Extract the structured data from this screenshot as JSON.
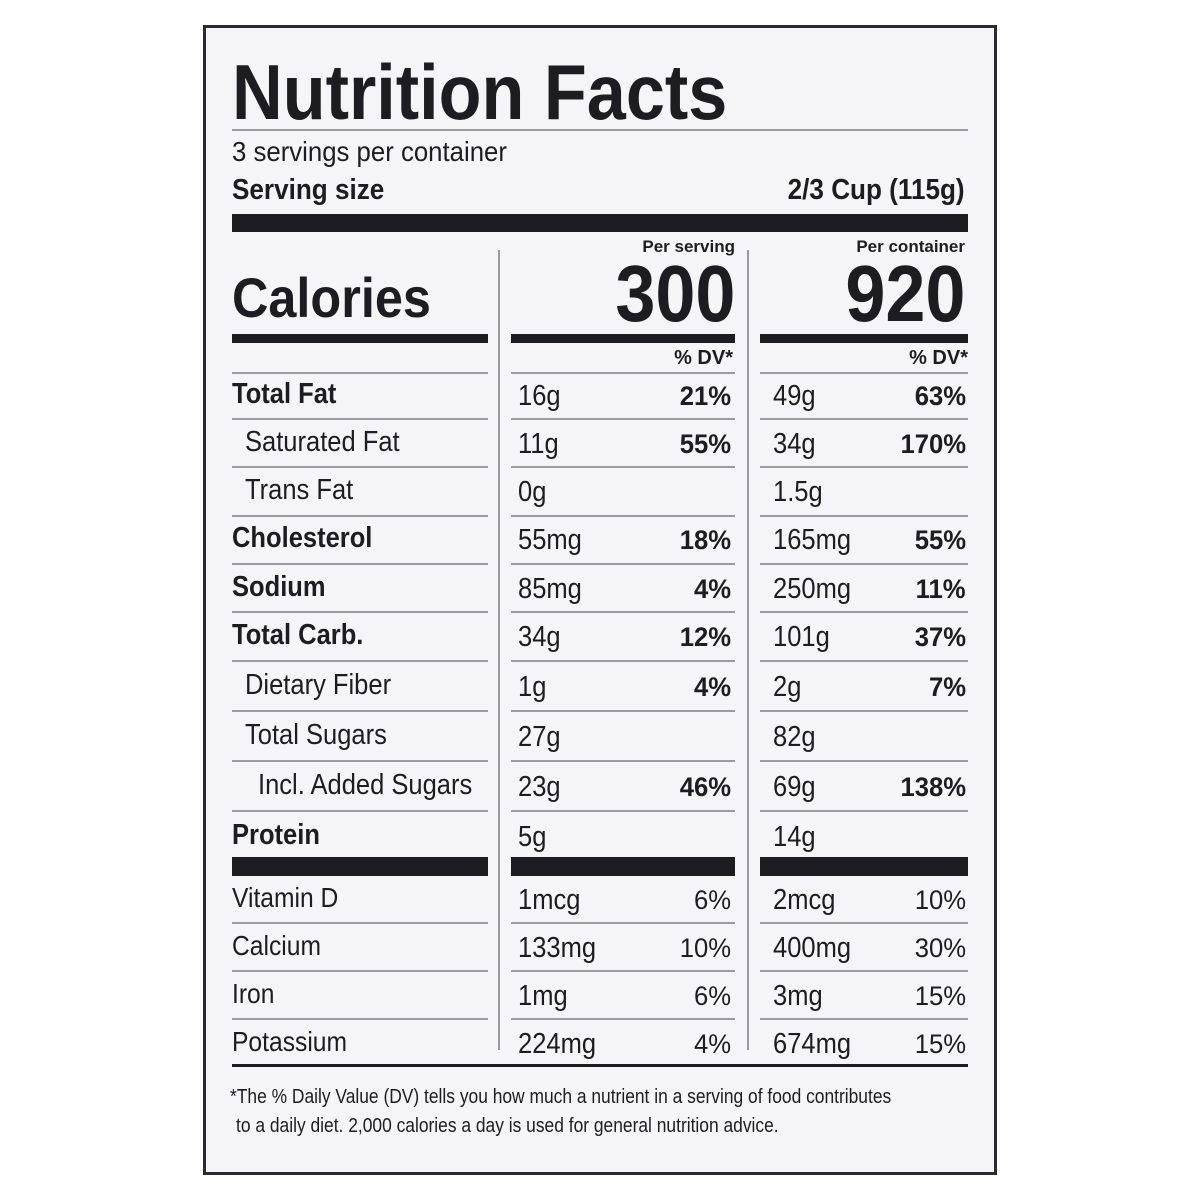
{
  "header": {
    "title": "Nutrition Facts",
    "servings": "3 servings per container",
    "serving_size_label": "Serving size",
    "serving_size_value": "2/3 Cup (115g)"
  },
  "columns": {
    "per_serving": "Per serving",
    "per_container": "Per container",
    "dv_serving": "% DV*",
    "dv_container": "% DV*"
  },
  "calories": {
    "label": "Calories",
    "per_serving": "300",
    "per_container": "920"
  },
  "rows": [
    {
      "name": "Total Fat",
      "bold": true,
      "indent": 0,
      "serving": "16g",
      "serving_dv": "21%",
      "container": "49g",
      "container_dv": "63%"
    },
    {
      "name": "Saturated Fat",
      "bold": false,
      "indent": 1,
      "serving": "11g",
      "serving_dv": "55%",
      "container": "34g",
      "container_dv": "170%"
    },
    {
      "name": "Trans Fat",
      "bold": false,
      "indent": 1,
      "serving": "0g",
      "container": "1.5g"
    },
    {
      "name": "Cholesterol",
      "bold": true,
      "indent": 0,
      "serving": "55mg",
      "serving_dv": "18%",
      "container": "165mg",
      "container_dv": "55%"
    },
    {
      "name": "Sodium",
      "bold": true,
      "indent": 0,
      "serving": "85mg",
      "serving_dv": "4%",
      "container": "250mg",
      "container_dv": "11%"
    },
    {
      "name": "Total Carb.",
      "bold": true,
      "indent": 0,
      "serving": "34g",
      "serving_dv": "12%",
      "container": "101g",
      "container_dv": "37%"
    },
    {
      "name": "Dietary Fiber",
      "bold": false,
      "indent": 1,
      "serving": "1g",
      "serving_dv": "4%",
      "container": "2g",
      "container_dv": "7%"
    },
    {
      "name": "Total Sugars",
      "bold": false,
      "indent": 1,
      "serving": "27g",
      "container": "82g"
    },
    {
      "name": "Incl. Added Sugars",
      "bold": false,
      "indent": 2,
      "serving": "23g",
      "serving_dv": "46%",
      "container": "69g",
      "container_dv": "138%"
    },
    {
      "name": "Protein",
      "bold": true,
      "indent": 0,
      "serving": "5g",
      "container": "14g"
    }
  ],
  "vitamins": [
    {
      "name": "Vitamin D",
      "serving": "1mcg",
      "serving_dv": "6%",
      "container": "2mcg",
      "container_dv": "10%"
    },
    {
      "name": "Calcium",
      "serving": "133mg",
      "serving_dv": "10%",
      "container": "400mg",
      "container_dv": "30%"
    },
    {
      "name": "Iron",
      "serving": "1mg",
      "serving_dv": "6%",
      "container": "3mg",
      "container_dv": "15%"
    },
    {
      "name": "Potassium",
      "serving": "224mg",
      "serving_dv": "4%",
      "container": "674mg",
      "container_dv": "15%"
    }
  ],
  "footnote": [
    "*The % Daily Value (DV) tells you how much a nutrient in a serving of food contributes",
    "to a daily diet. 2,000 calories a day is used for general nutrition advice."
  ]
}
